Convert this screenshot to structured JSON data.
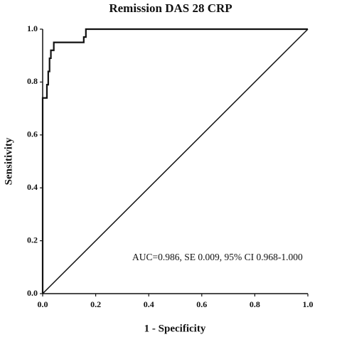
{
  "chart_data": {
    "type": "line",
    "title": "Remission DAS 28 CRP",
    "x_label": "1 - Specificity",
    "y_label": "Sensitivity",
    "annotation": "AUC=0.986, SE 0.009, 95% CI 0.968-1.000",
    "x": [
      0,
      0,
      0.016,
      0.016,
      0.021,
      0.021,
      0.026,
      0.026,
      0.031,
      0.031,
      0.042,
      0.042,
      0.155,
      0.155,
      0.163,
      0.163,
      1
    ],
    "series": [
      {
        "color": "#111111",
        "values": [
          0,
          0.74,
          0.74,
          0.79,
          0.79,
          0.84,
          0.84,
          0.89,
          0.89,
          0.92,
          0.92,
          0.95,
          0.95,
          0.97,
          0.97,
          1,
          1
        ]
      }
    ],
    "reference_line": {
      "color": "#111111",
      "x": [
        0,
        1
      ],
      "values": [
        0,
        1
      ]
    },
    "xlim": [
      0,
      1
    ],
    "ylim": [
      0,
      1
    ],
    "xticks": [
      {
        "value": 0,
        "label": "0.0"
      },
      0.2,
      0.4,
      0.6,
      0.8,
      {
        "value": 1,
        "label": "1.0"
      }
    ],
    "yticks": [
      {
        "value": 0,
        "label": "0.0"
      },
      0.2,
      0.4,
      0.6,
      0.8,
      {
        "value": 1,
        "label": "1.0"
      }
    ]
  }
}
